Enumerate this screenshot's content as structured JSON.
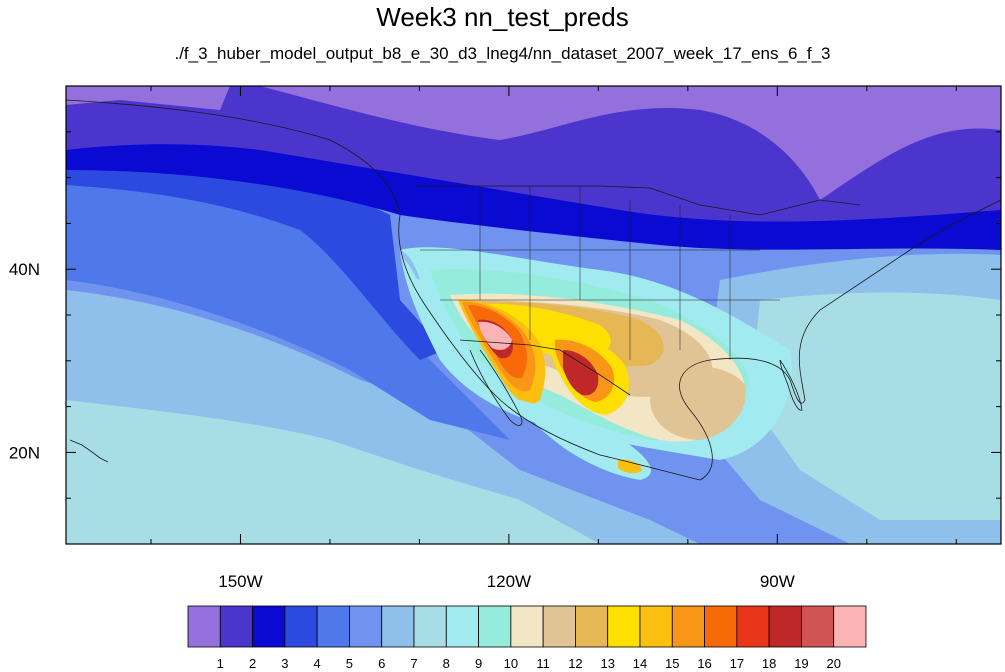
{
  "title": "Week3 nn_test_preds",
  "subtitle": "./f_3_huber_model_output_b8_e_30_d3_lneg4/nn_dataset_2007_week_17_ens_6_f_3",
  "axes": {
    "lon_range": [
      -169.5,
      -65
    ],
    "lat_range": [
      10,
      60
    ],
    "lon_ticks": [
      {
        "value": -150,
        "label": "150W"
      },
      {
        "value": -120,
        "label": "120W"
      },
      {
        "value": -90,
        "label": "90W"
      }
    ],
    "lat_ticks": [
      {
        "value": 40,
        "label": "40N"
      },
      {
        "value": 20,
        "label": "20N"
      }
    ]
  },
  "colorbar": {
    "labels": [
      "1",
      "2",
      "3",
      "4",
      "5",
      "6",
      "7",
      "8",
      "9",
      "10",
      "11",
      "12",
      "13",
      "14",
      "15",
      "16",
      "17",
      "18",
      "19",
      "20"
    ],
    "colors": [
      "#9370db",
      "#4b35cc",
      "#0a0ad2",
      "#2d4ae0",
      "#4f78ea",
      "#6f93ee",
      "#8fbfeb",
      "#a9dde6",
      "#a0eaf0",
      "#96ecdc",
      "#f2e6c4",
      "#e1c496",
      "#e6b855",
      "#fde000",
      "#fbbf10",
      "#f99618",
      "#f86908",
      "#e93618",
      "#be2828",
      "#d05454",
      "#fbb3b3"
    ]
  },
  "colors": {
    "ocean_far": "#8fbfeb",
    "ocean_near": "#a9dde6",
    "north_band": "#4b35cc",
    "arctic": "#9370db"
  }
}
